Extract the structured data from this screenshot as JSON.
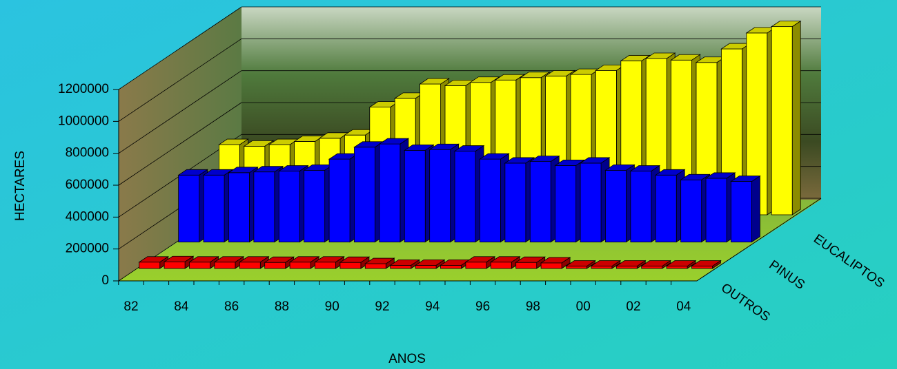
{
  "chart_data": {
    "type": "bar",
    "y_label": "HECTARES",
    "x_label": "ANOS",
    "categories": [
      "82",
      null,
      "84",
      null,
      "86",
      null,
      "88",
      null,
      "90",
      null,
      "92",
      null,
      "94",
      null,
      "96",
      null,
      "98",
      null,
      "00",
      null,
      "02",
      null,
      "04"
    ],
    "series": [
      {
        "name": "OUTROS",
        "color": "#ff0000",
        "values": [
          40000,
          42000,
          40000,
          40000,
          40000,
          38000,
          40000,
          40000,
          38000,
          30000,
          20000,
          20000,
          20000,
          40000,
          40000,
          38000,
          35000,
          15000,
          15000,
          15000,
          15000,
          15000,
          15000
        ]
      },
      {
        "name": "PINUS",
        "color": "#0000ff",
        "values": [
          420000,
          420000,
          435000,
          440000,
          445000,
          450000,
          520000,
          595000,
          615000,
          575000,
          580000,
          570000,
          520000,
          495000,
          505000,
          480000,
          495000,
          450000,
          445000,
          420000,
          390000,
          400000,
          380000
        ]
      },
      {
        "name": "EUCALIPTOS",
        "color": "#ffff00",
        "values": [
          440000,
          430000,
          440000,
          460000,
          480000,
          500000,
          675000,
          730000,
          820000,
          810000,
          830000,
          845000,
          860000,
          870000,
          880000,
          905000,
          965000,
          980000,
          970000,
          955000,
          1040000,
          1140000,
          1180000
        ]
      }
    ],
    "ylim": [
      0,
      1200000
    ],
    "yticks": [
      0,
      200000,
      400000,
      600000,
      800000,
      1000000,
      1200000
    ],
    "grid": true
  }
}
